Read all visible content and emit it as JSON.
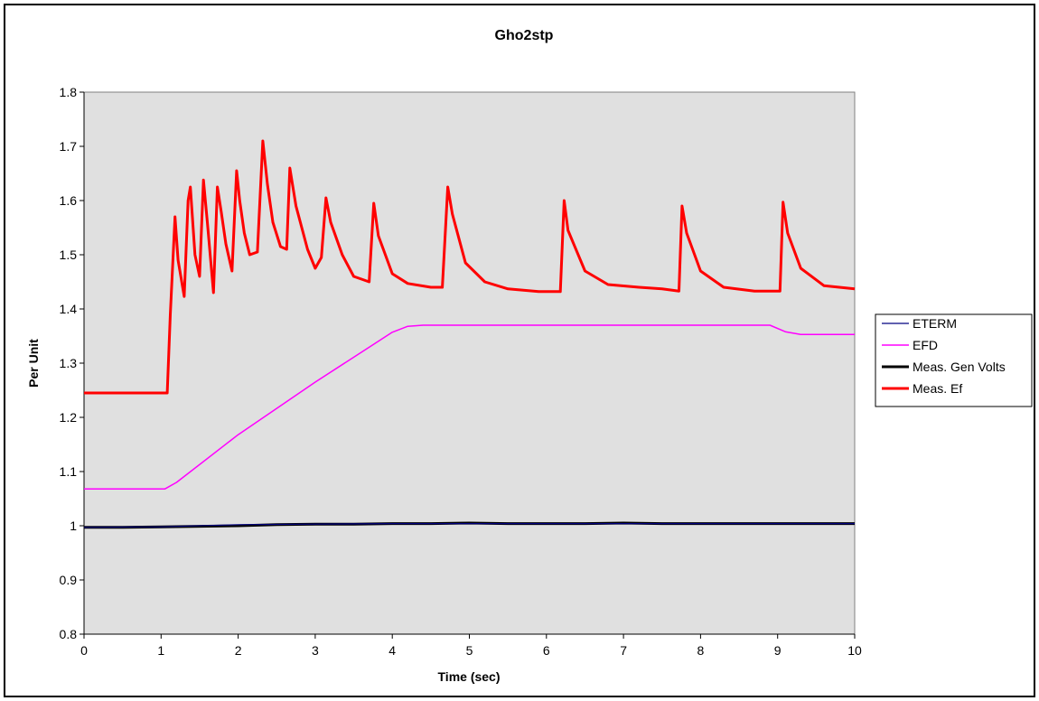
{
  "chart_data": {
    "type": "line",
    "title": "Gho2stp",
    "xlabel": "Time (sec)",
    "ylabel": "Per Unit",
    "xlim": [
      0,
      10
    ],
    "ylim": [
      0.8,
      1.8
    ],
    "x_ticks": [
      "0",
      "1",
      "2",
      "3",
      "4",
      "5",
      "6",
      "7",
      "8",
      "9",
      "10"
    ],
    "y_ticks": [
      "0.8",
      "0.9",
      "1",
      "1.1",
      "1.2",
      "1.3",
      "1.4",
      "1.5",
      "1.6",
      "1.7",
      "1.8"
    ],
    "grid": false,
    "plot_background": "#e0e0e0",
    "legend_position": "right",
    "series": [
      {
        "name": "ETERM",
        "color": "#000080",
        "x": [
          0,
          1,
          2,
          3,
          4,
          10
        ],
        "y": [
          0.997,
          0.998,
          1.002,
          1.003,
          1.004,
          1.004
        ]
      },
      {
        "name": "EFD",
        "color": "#ff00ff",
        "x": [
          0,
          1.05,
          1.2,
          2,
          3,
          4,
          4.2,
          4.4,
          8.9,
          9.1,
          9.3,
          10
        ],
        "y": [
          1.068,
          1.068,
          1.08,
          1.168,
          1.265,
          1.357,
          1.368,
          1.37,
          1.37,
          1.358,
          1.353,
          1.353
        ]
      },
      {
        "name": "Meas. Gen Volts",
        "color": "#000000",
        "x": [
          0,
          0.5,
          1,
          1.5,
          2,
          2.5,
          3,
          3.5,
          4,
          4.5,
          5,
          5.5,
          6,
          6.5,
          7,
          7.5,
          8,
          8.5,
          9,
          9.5,
          10
        ],
        "y": [
          0.997,
          0.997,
          0.998,
          0.999,
          1.0,
          1.002,
          1.003,
          1.003,
          1.004,
          1.004,
          1.005,
          1.004,
          1.004,
          1.004,
          1.005,
          1.004,
          1.004,
          1.004,
          1.004,
          1.004,
          1.004
        ]
      },
      {
        "name": "Meas. Ef",
        "color": "#ff0000",
        "x": [
          0,
          1.08,
          1.12,
          1.18,
          1.22,
          1.3,
          1.35,
          1.38,
          1.44,
          1.5,
          1.55,
          1.6,
          1.68,
          1.73,
          1.78,
          1.84,
          1.92,
          1.98,
          2.02,
          2.08,
          2.15,
          2.25,
          2.32,
          2.38,
          2.45,
          2.55,
          2.63,
          2.67,
          2.75,
          2.9,
          3.0,
          3.08,
          3.14,
          3.2,
          3.35,
          3.5,
          3.6,
          3.7,
          3.76,
          3.82,
          4.0,
          4.2,
          4.5,
          4.65,
          4.72,
          4.78,
          4.95,
          5.2,
          5.5,
          5.9,
          6.18,
          6.23,
          6.28,
          6.5,
          6.8,
          7.2,
          7.5,
          7.72,
          7.76,
          7.82,
          8.0,
          8.3,
          8.7,
          9.03,
          9.07,
          9.13,
          9.3,
          9.6,
          10.0
        ],
        "y": [
          1.245,
          1.245,
          1.39,
          1.57,
          1.49,
          1.423,
          1.6,
          1.625,
          1.5,
          1.46,
          1.638,
          1.56,
          1.43,
          1.625,
          1.58,
          1.52,
          1.47,
          1.655,
          1.6,
          1.54,
          1.5,
          1.505,
          1.71,
          1.63,
          1.56,
          1.515,
          1.51,
          1.66,
          1.59,
          1.51,
          1.475,
          1.495,
          1.605,
          1.56,
          1.5,
          1.46,
          1.455,
          1.45,
          1.595,
          1.535,
          1.465,
          1.447,
          1.44,
          1.44,
          1.625,
          1.575,
          1.485,
          1.45,
          1.437,
          1.432,
          1.432,
          1.6,
          1.545,
          1.47,
          1.445,
          1.44,
          1.437,
          1.433,
          1.59,
          1.54,
          1.47,
          1.44,
          1.433,
          1.433,
          1.597,
          1.54,
          1.475,
          1.443,
          1.437
        ]
      }
    ]
  }
}
